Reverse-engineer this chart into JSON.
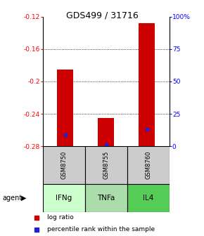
{
  "title": "GDS499 / 31716",
  "samples": [
    "GSM8750",
    "GSM8755",
    "GSM8760"
  ],
  "agents": [
    "IFNg",
    "TNFa",
    "IL4"
  ],
  "log_ratios": [
    -0.185,
    -0.245,
    -0.128
  ],
  "percentile_ranks": [
    9.0,
    1.5,
    13.0
  ],
  "baseline": -0.28,
  "ylim": [
    -0.28,
    -0.12
  ],
  "y_ticks_left": [
    -0.28,
    -0.24,
    -0.2,
    -0.16,
    -0.12
  ],
  "right_tick_labels": [
    "0",
    "25",
    "50",
    "75",
    "100%"
  ],
  "right_tick_vals": [
    -0.28,
    -0.24,
    -0.2,
    -0.16,
    -0.12
  ],
  "grid_lines": [
    -0.24,
    -0.2,
    -0.16
  ],
  "bar_color": "#cc0000",
  "dot_color": "#2222cc",
  "sample_bg": "#cccccc",
  "agent_colors": [
    "#ccffcc",
    "#aaddaa",
    "#55cc55"
  ],
  "legend_log_color": "#cc0000",
  "legend_pct_color": "#2222cc"
}
